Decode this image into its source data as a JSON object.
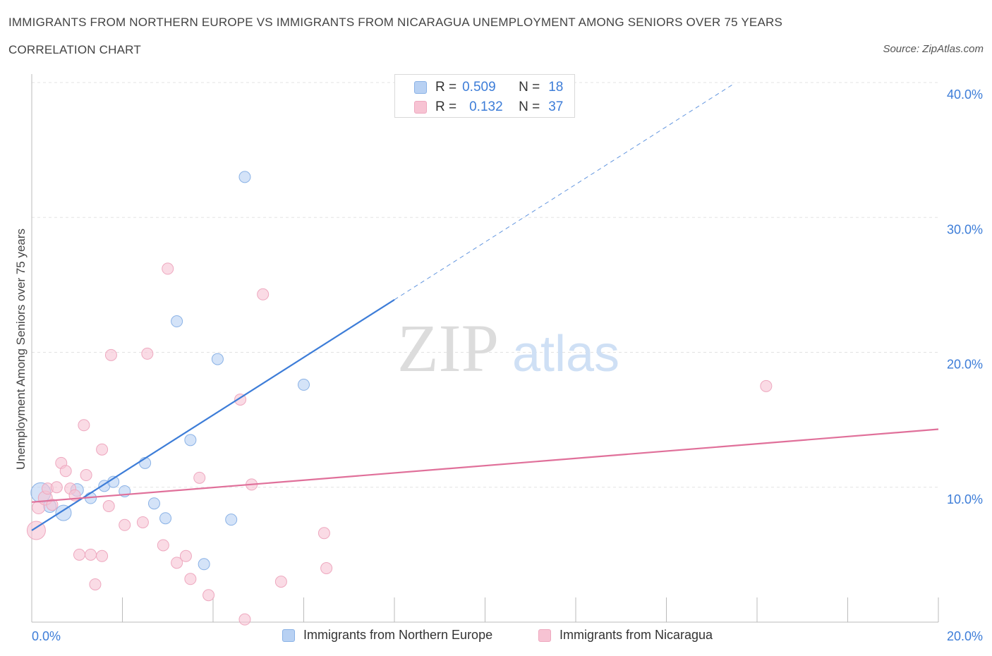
{
  "header": {
    "title": "IMMIGRANTS FROM NORTHERN EUROPE VS IMMIGRANTS FROM NICARAGUA UNEMPLOYMENT AMONG SENIORS OVER 75 YEARS",
    "subtitle": "CORRELATION CHART",
    "source": "Source: ZipAtlas.com"
  },
  "watermark": {
    "zip": "ZIP",
    "atlas": "atlas"
  },
  "colors": {
    "blue": "#3d7dd8",
    "blue_fill": "#b8d1f3",
    "blue_stroke": "#8ab2e6",
    "pink": "#e0709a",
    "pink_fill": "#f7c3d3",
    "pink_stroke": "#eea8bf",
    "grid": "#e3e3e3",
    "axis": "#bbbbbb",
    "tick_text": "#3d7dd8"
  },
  "legend_top": {
    "rows": [
      {
        "r_label": "R =",
        "r_value": "0.509",
        "n_label": "N =",
        "n_value": "18"
      },
      {
        "r_label": "R =",
        "r_value": "0.132",
        "n_label": "N =",
        "n_value": "37"
      }
    ]
  },
  "chart_data": {
    "type": "scatter",
    "title": "IMMIGRANTS FROM NORTHERN EUROPE VS IMMIGRANTS FROM NICARAGUA UNEMPLOYMENT AMONG SENIORS OVER 75 YEARS",
    "xlabel": "",
    "ylabel": "Unemployment Among Seniors over 75 years",
    "xlim": [
      0,
      20
    ],
    "ylim": [
      0,
      40
    ],
    "x_tick_labels": [
      "0.0%",
      "20.0%"
    ],
    "y_tick_values": [
      10,
      20,
      30,
      40
    ],
    "y_tick_labels": [
      "10.0%",
      "20.0%",
      "30.0%",
      "40.0%"
    ],
    "grid": true,
    "series": [
      {
        "name": "Immigrants from Northern Europe",
        "color": "blue",
        "r": "0.509",
        "n": "18",
        "trend": {
          "x0": 0.0,
          "y0": 6.8,
          "x1": 8.0,
          "y1": 23.9,
          "dash_to_x": 15.5
        },
        "points": [
          [
            0.2,
            9.6,
            14
          ],
          [
            0.4,
            8.6,
            9
          ],
          [
            0.7,
            8.1,
            11
          ],
          [
            1.0,
            9.8,
            9
          ],
          [
            1.3,
            9.2,
            8
          ],
          [
            1.6,
            10.1,
            8
          ],
          [
            1.8,
            10.4,
            8
          ],
          [
            2.05,
            9.7,
            8
          ],
          [
            2.5,
            11.8,
            8
          ],
          [
            2.7,
            8.8,
            8
          ],
          [
            2.95,
            7.7,
            8
          ],
          [
            3.2,
            22.3,
            8
          ],
          [
            3.5,
            13.5,
            8
          ],
          [
            3.8,
            4.3,
            8
          ],
          [
            4.1,
            19.5,
            8
          ],
          [
            4.4,
            7.6,
            8
          ],
          [
            4.7,
            33.0,
            8
          ],
          [
            6.0,
            17.6,
            8
          ]
        ]
      },
      {
        "name": "Immigrants from Nicaragua",
        "color": "pink",
        "r": "0.132",
        "n": "37",
        "trend": {
          "x0": 0.0,
          "y0": 8.9,
          "x1": 20.0,
          "y1": 14.3
        },
        "points": [
          [
            0.1,
            6.8,
            13
          ],
          [
            0.15,
            8.5,
            9
          ],
          [
            0.3,
            9.2,
            10
          ],
          [
            0.35,
            9.9,
            8
          ],
          [
            0.45,
            8.7,
            8
          ],
          [
            0.55,
            10.0,
            8
          ],
          [
            0.65,
            11.8,
            8
          ],
          [
            0.75,
            11.2,
            8
          ],
          [
            0.85,
            9.9,
            8
          ],
          [
            0.95,
            9.4,
            8
          ],
          [
            1.05,
            5.0,
            8
          ],
          [
            1.15,
            14.6,
            8
          ],
          [
            1.2,
            10.9,
            8
          ],
          [
            1.3,
            5.0,
            8
          ],
          [
            1.4,
            2.8,
            8
          ],
          [
            1.55,
            4.9,
            8
          ],
          [
            1.55,
            12.8,
            8
          ],
          [
            1.7,
            8.6,
            8
          ],
          [
            1.75,
            19.8,
            8
          ],
          [
            2.05,
            7.2,
            8
          ],
          [
            2.45,
            7.4,
            8
          ],
          [
            2.55,
            19.9,
            8
          ],
          [
            2.9,
            5.7,
            8
          ],
          [
            3.0,
            26.2,
            8
          ],
          [
            3.2,
            4.4,
            8
          ],
          [
            3.4,
            4.9,
            8
          ],
          [
            3.5,
            3.2,
            8
          ],
          [
            3.7,
            10.7,
            8
          ],
          [
            3.9,
            2.0,
            8
          ],
          [
            4.6,
            16.5,
            8
          ],
          [
            4.7,
            0.2,
            8
          ],
          [
            4.85,
            10.2,
            8
          ],
          [
            5.1,
            24.3,
            8
          ],
          [
            5.5,
            3.0,
            8
          ],
          [
            6.45,
            6.6,
            8
          ],
          [
            6.5,
            4.0,
            8
          ],
          [
            16.2,
            17.5,
            8
          ]
        ]
      }
    ]
  }
}
